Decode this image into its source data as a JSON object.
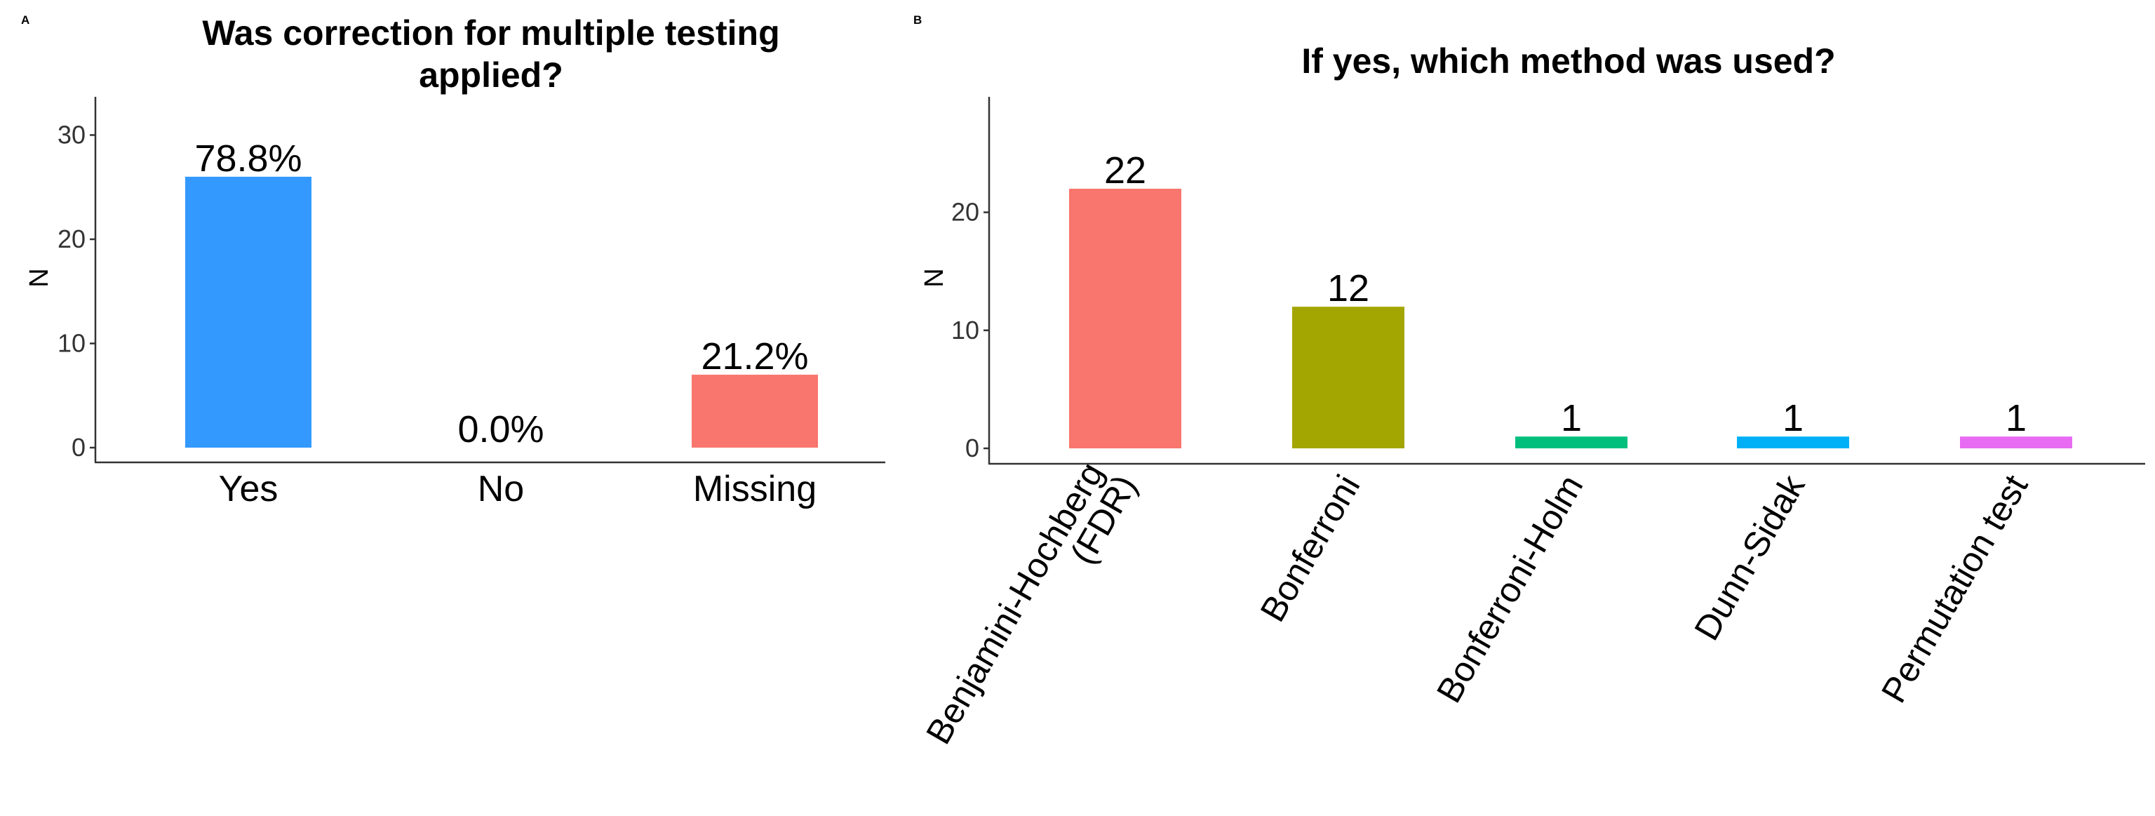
{
  "panels": [
    {
      "tag": "A",
      "title_lines": [
        "Was correction for multiple testing",
        "applied?"
      ],
      "ylabel": "N"
    },
    {
      "tag": "B",
      "title_lines": [
        "If yes, which method was used?"
      ],
      "ylabel": "N"
    }
  ],
  "chart_data": [
    {
      "type": "bar",
      "title": "Was correction for multiple testing applied?",
      "xlabel": "",
      "ylabel": "N",
      "categories": [
        "Yes",
        "No",
        "Missing"
      ],
      "values": [
        26,
        0,
        7
      ],
      "data_labels": [
        "78.8%",
        "0.0%",
        "21.2%"
      ],
      "colors": [
        "#3399FF",
        "#3399FF",
        "#F8766D"
      ],
      "ylim": [
        0,
        33
      ],
      "yticks": [
        0,
        10,
        20,
        30
      ],
      "grid": false,
      "legend": "none"
    },
    {
      "type": "bar",
      "title": "If yes, which method was used?",
      "xlabel": "",
      "ylabel": "N",
      "categories": [
        [
          "Benjamini-Hochberg",
          "(FDR)"
        ],
        [
          "Bonferroni"
        ],
        [
          "Bonferroni-Holm"
        ],
        [
          "Dunn-Sidak"
        ],
        [
          "Permutation test"
        ]
      ],
      "values": [
        22,
        12,
        1,
        1,
        1
      ],
      "data_labels": [
        "22",
        "12",
        "1",
        "1",
        "1"
      ],
      "colors": [
        "#F8766D",
        "#A3A500",
        "#00BF7D",
        "#00B0F6",
        "#E76BF3"
      ],
      "ylim": [
        0,
        29.5
      ],
      "yticks": [
        0,
        10,
        20
      ],
      "grid": false,
      "legend": "none"
    }
  ]
}
